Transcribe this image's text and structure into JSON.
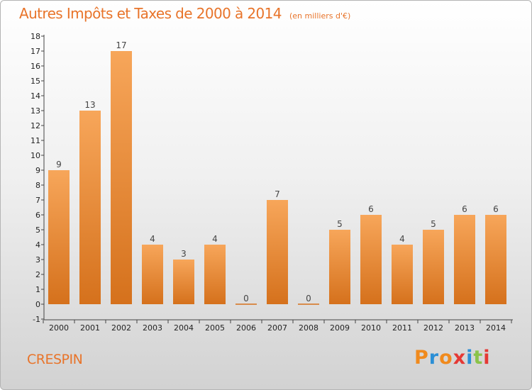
{
  "header": {
    "title": "Autres Impôts et Taxes de 2000 à 2014",
    "subtitle": "(en milliers d'€)"
  },
  "footer": {
    "place": "CRESPIN",
    "brand": "Proxiti"
  },
  "colors": {
    "bar_light": "#f7a65a",
    "bar_dark": "#d5711c",
    "title": "#e8742a"
  },
  "chart_data": {
    "type": "bar",
    "categories": [
      "2000",
      "2001",
      "2002",
      "2003",
      "2004",
      "2005",
      "2006",
      "2007",
      "2008",
      "2009",
      "2010",
      "2011",
      "2012",
      "2013",
      "2014"
    ],
    "values": [
      9,
      13,
      17,
      4,
      3,
      4,
      0,
      7,
      0,
      5,
      6,
      4,
      5,
      6,
      6
    ],
    "title": "Autres Impôts et Taxes de 2000 à 2014",
    "subtitle": "(en milliers d'€)",
    "ylim": [
      -1,
      18
    ],
    "yticks": [
      -1,
      0,
      1,
      2,
      3,
      4,
      5,
      6,
      7,
      8,
      9,
      10,
      11,
      12,
      13,
      14,
      15,
      16,
      17,
      18
    ],
    "grid": false,
    "data_labels": true
  }
}
